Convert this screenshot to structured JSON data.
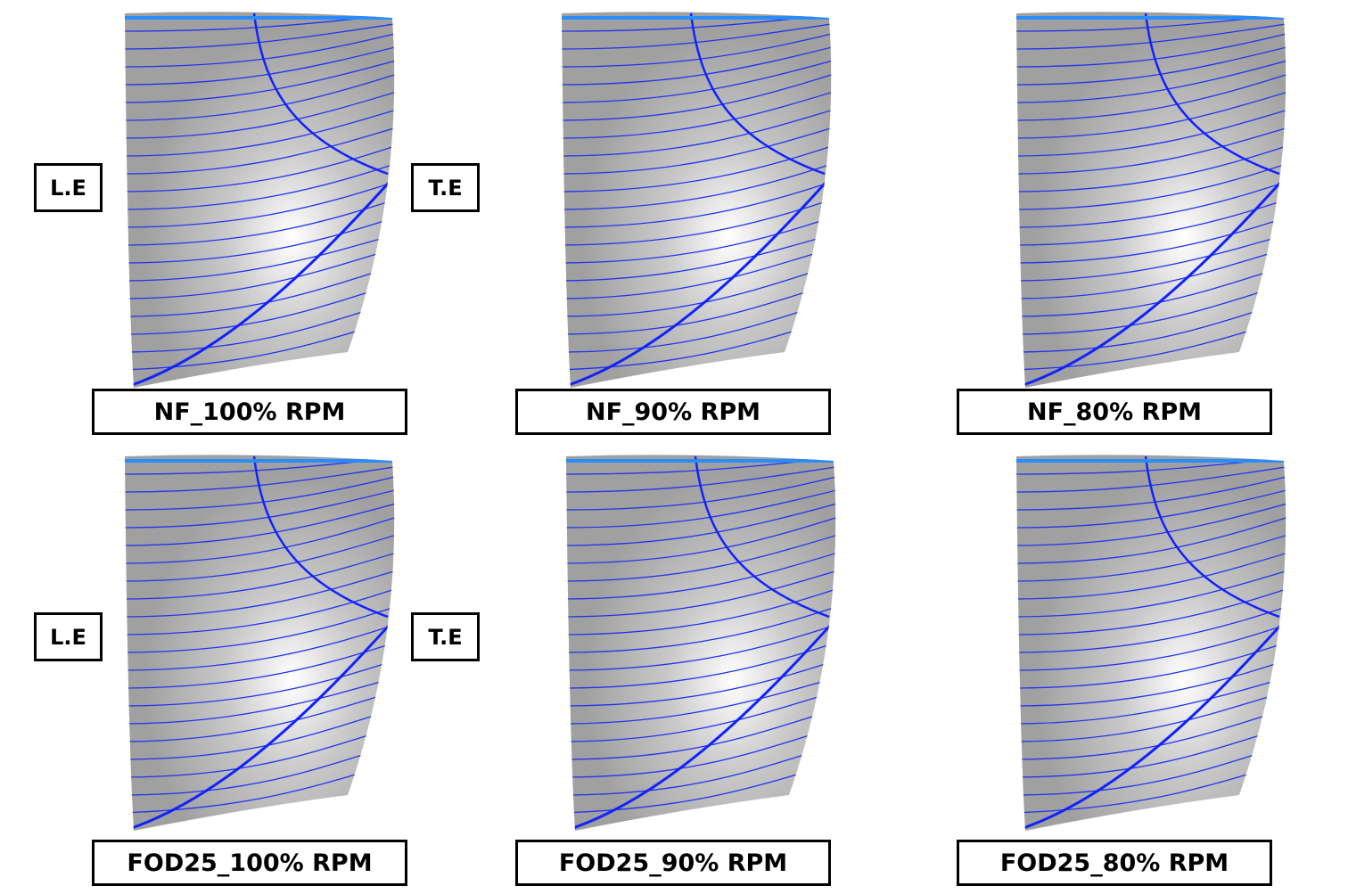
{
  "panels": [
    {
      "label": "NF_100% RPM"
    },
    {
      "label": "NF_90% RPM"
    },
    {
      "label": "NF_80% RPM"
    },
    {
      "label": "FOD25_100% RPM"
    },
    {
      "label": "FOD25_90% RPM"
    },
    {
      "label": "FOD25_80% RPM"
    }
  ],
  "edge_labels": [
    {
      "leading": "L.E",
      "trailing": "T.E"
    },
    {
      "leading": "L.E",
      "trailing": "T.E"
    }
  ]
}
